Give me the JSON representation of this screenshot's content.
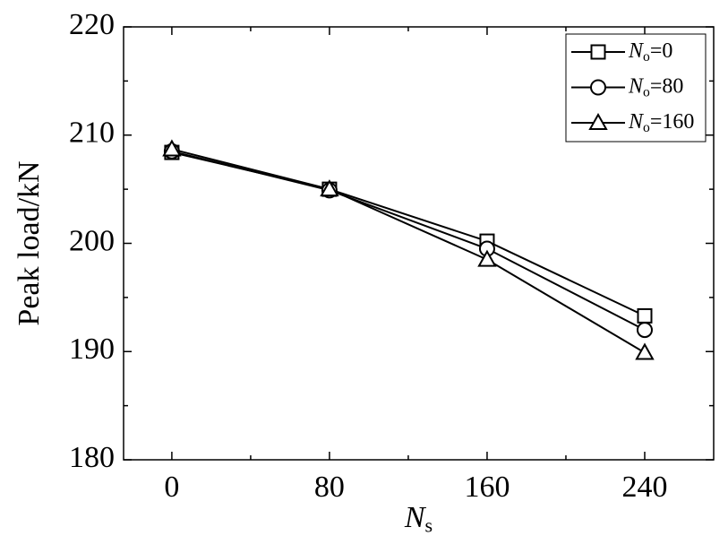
{
  "chart_data": {
    "type": "line",
    "x_label": "Ns",
    "y_label": "Peak load/kN",
    "x": [
      0,
      80,
      160,
      240
    ],
    "series": [
      {
        "name": "No=0",
        "marker": "square",
        "color": "#000000",
        "values": [
          208.4,
          205.0,
          200.2,
          193.3
        ]
      },
      {
        "name": "No=80",
        "marker": "circle",
        "color": "#000000",
        "values": [
          208.5,
          204.9,
          199.5,
          192.0
        ]
      },
      {
        "name": "No=160",
        "marker": "triangle",
        "color": "#000000",
        "values": [
          208.7,
          205.0,
          198.5,
          189.9
        ]
      }
    ],
    "xlim": [
      -24.5,
      275
    ],
    "xticks": [
      0,
      80,
      160,
      240
    ],
    "minor_xticks": [
      40,
      120,
      200
    ],
    "ylim": [
      180,
      220
    ],
    "yticks": [
      180,
      190,
      200,
      210,
      220
    ],
    "minor_yticks": [
      185,
      195,
      205,
      215
    ],
    "legend": "upper right"
  }
}
